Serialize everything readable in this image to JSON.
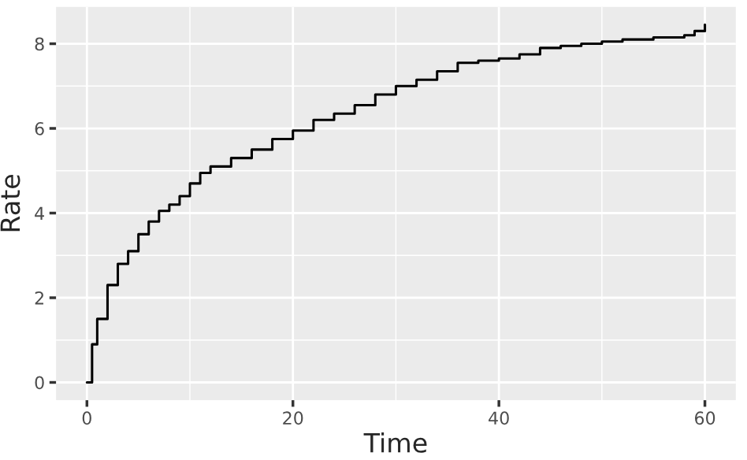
{
  "chart_data": {
    "type": "step",
    "xlabel": "Time",
    "ylabel": "Rate",
    "x": [
      0,
      0.5,
      1,
      2,
      3,
      4,
      5,
      6,
      7,
      8,
      9,
      10,
      11,
      12,
      14,
      16,
      18,
      20,
      22,
      24,
      26,
      28,
      30,
      32,
      34,
      36,
      38,
      40,
      42,
      44,
      46,
      48,
      50,
      52,
      55,
      58,
      59,
      60
    ],
    "series": [
      {
        "color": "#000000",
        "values": [
          0,
          0.9,
          1.5,
          2.3,
          2.8,
          3.1,
          3.5,
          3.8,
          4.05,
          4.2,
          4.4,
          4.7,
          4.95,
          5.1,
          5.3,
          5.5,
          5.75,
          5.95,
          6.2,
          6.35,
          6.55,
          6.8,
          7.0,
          7.15,
          7.35,
          7.55,
          7.6,
          7.65,
          7.75,
          7.9,
          7.95,
          8.0,
          8.05,
          8.1,
          8.15,
          8.2,
          8.3,
          8.45
        ]
      }
    ],
    "xlim": [
      -3,
      63
    ],
    "ylim": [
      -0.42,
      8.87
    ],
    "xticks": [
      0,
      20,
      40,
      60
    ],
    "yticks": [
      0,
      2,
      4,
      6,
      8
    ],
    "grid": true,
    "legend": false,
    "line_style": "solid",
    "marker": "none"
  }
}
